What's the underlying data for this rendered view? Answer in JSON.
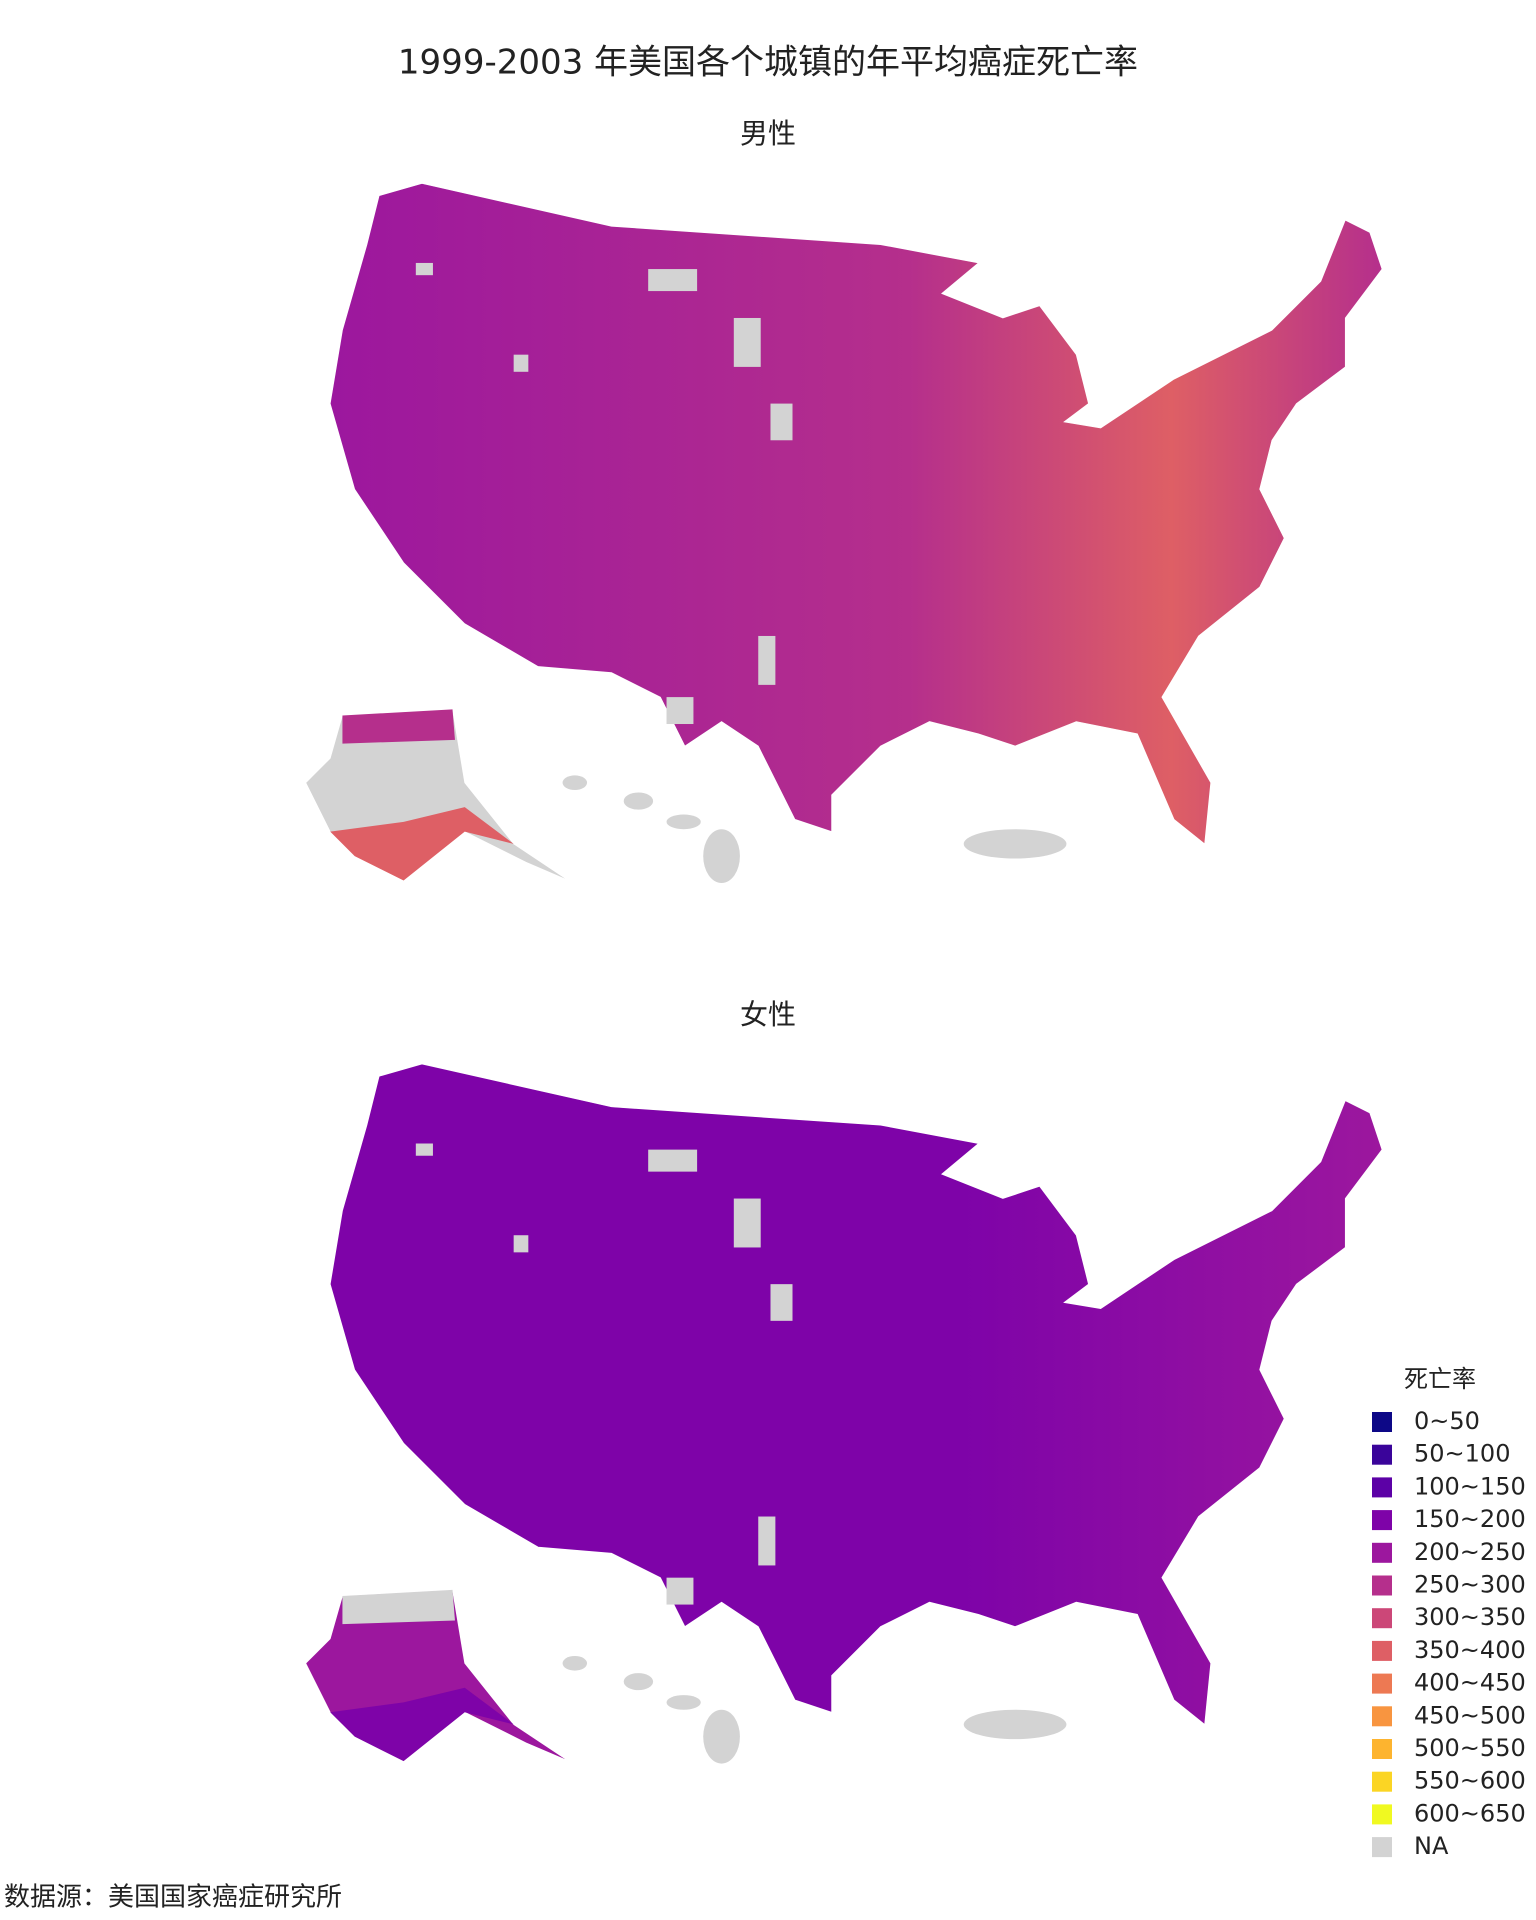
{
  "title": "1999-2003 年美国各个城镇的年平均癌症死亡率",
  "maps": [
    {
      "title": "男性"
    },
    {
      "title": "女性"
    }
  ],
  "legend": {
    "title": "死亡率",
    "items": [
      {
        "label": "0~50",
        "color": "#0d0887"
      },
      {
        "label": "50~100",
        "color": "#3a049a"
      },
      {
        "label": "100~150",
        "color": "#5c01a6"
      },
      {
        "label": "150~200",
        "color": "#7e03a8"
      },
      {
        "label": "200~250",
        "color": "#9c179e"
      },
      {
        "label": "250~300",
        "color": "#b52f8c"
      },
      {
        "label": "300~350",
        "color": "#cc4778"
      },
      {
        "label": "350~400",
        "color": "#de5f65"
      },
      {
        "label": "400~450",
        "color": "#ed7953"
      },
      {
        "label": "450~500",
        "color": "#f89540"
      },
      {
        "label": "500~550",
        "color": "#fdb42f"
      },
      {
        "label": "550~600",
        "color": "#fbd524"
      },
      {
        "label": "600~650",
        "color": "#f0f921"
      },
      {
        "label": "NA",
        "color": "#d3d3d3"
      }
    ]
  },
  "source": "数据源：美国国家癌症研究所"
}
